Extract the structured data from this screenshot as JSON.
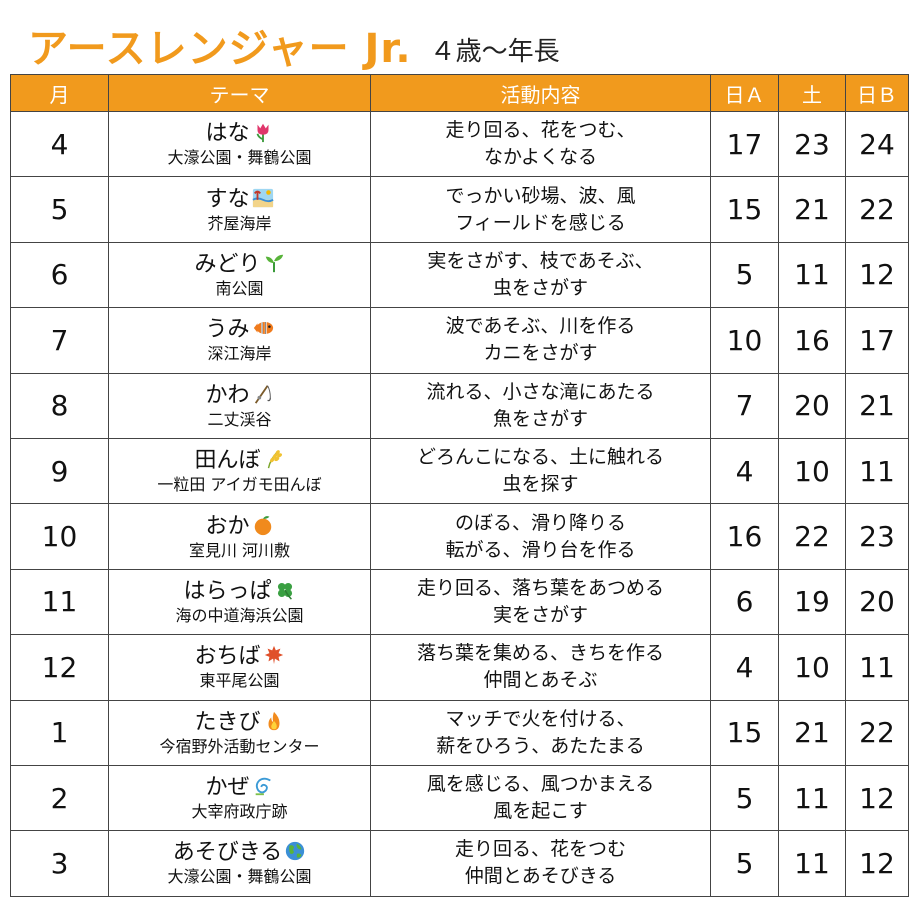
{
  "header": {
    "title": "アースレンジャー Jr.",
    "subtitle": "４歳〜年長"
  },
  "columns": [
    "月",
    "テーマ",
    "活動内容",
    "日Ａ",
    "土",
    "日Ｂ"
  ],
  "rows": [
    {
      "month": "4",
      "theme": "はな",
      "icon": "tulip-icon",
      "place": "大濠公園・舞鶴公園",
      "activity": [
        "走り回る、花をつむ、",
        "なかよくなる"
      ],
      "sunA": "17",
      "sat": "23",
      "sunB": "24"
    },
    {
      "month": "5",
      "theme": "すな",
      "icon": "beach-icon",
      "place": "芥屋海岸",
      "activity": [
        "でっかい砂場、波、風",
        "フィールドを感じる"
      ],
      "sunA": "15",
      "sat": "21",
      "sunB": "22"
    },
    {
      "month": "6",
      "theme": "みどり",
      "icon": "seedling-icon",
      "place": "南公園",
      "activity": [
        "実をさがす、枝であそぶ、",
        "虫をさがす"
      ],
      "sunA": "5",
      "sat": "11",
      "sunB": "12"
    },
    {
      "month": "7",
      "theme": "うみ",
      "icon": "fish-icon",
      "place": "深江海岸",
      "activity": [
        "波であそぶ、川を作る",
        "カニをさがす"
      ],
      "sunA": "10",
      "sat": "16",
      "sunB": "17"
    },
    {
      "month": "8",
      "theme": "かわ",
      "icon": "fishing-pole-icon",
      "place": "二丈渓谷",
      "activity": [
        "流れる、小さな滝にあたる",
        "魚をさがす"
      ],
      "sunA": "7",
      "sat": "20",
      "sunB": "21"
    },
    {
      "month": "9",
      "theme": "田んぼ",
      "icon": "rice-icon",
      "place": "一粒田 アイガモ田んぼ",
      "activity": [
        "どろんこになる、土に触れる",
        "虫を探す"
      ],
      "sunA": "4",
      "sat": "10",
      "sunB": "11"
    },
    {
      "month": "10",
      "theme": "おか",
      "icon": "tangerine-icon",
      "place": "室見川 河川敷",
      "activity": [
        "のぼる、滑り降りる",
        "転がる、滑り台を作る"
      ],
      "sunA": "16",
      "sat": "22",
      "sunB": "23"
    },
    {
      "month": "11",
      "theme": "はらっぱ",
      "icon": "clover-icon",
      "place": "海の中道海浜公園",
      "activity": [
        "走り回る、落ち葉をあつめる",
        "実をさがす"
      ],
      "sunA": "6",
      "sat": "19",
      "sunB": "20"
    },
    {
      "month": "12",
      "theme": "おちば",
      "icon": "maple-leaf-icon",
      "place": "東平尾公園",
      "activity": [
        "落ち葉を集める、きちを作る",
        "仲間とあそぶ"
      ],
      "sunA": "4",
      "sat": "10",
      "sunB": "11"
    },
    {
      "month": "1",
      "theme": "たきび",
      "icon": "fire-icon",
      "place": "今宿野外活動センター",
      "activity": [
        "マッチで火を付ける、",
        "薪をひろう、あたたまる"
      ],
      "sunA": "15",
      "sat": "21",
      "sunB": "22"
    },
    {
      "month": "2",
      "theme": "かぜ",
      "icon": "wind-icon",
      "place": "大宰府政庁跡",
      "activity": [
        "風を感じる、風つかまえる",
        "風を起こす"
      ],
      "sunA": "5",
      "sat": "11",
      "sunB": "12"
    },
    {
      "month": "3",
      "theme": "あそびきる",
      "icon": "globe-icon",
      "place": "大濠公園・舞鶴公園",
      "activity": [
        "走り回る、花をつむ",
        "仲間とあそびきる"
      ],
      "sunA": "5",
      "sat": "11",
      "sunB": "12"
    }
  ]
}
